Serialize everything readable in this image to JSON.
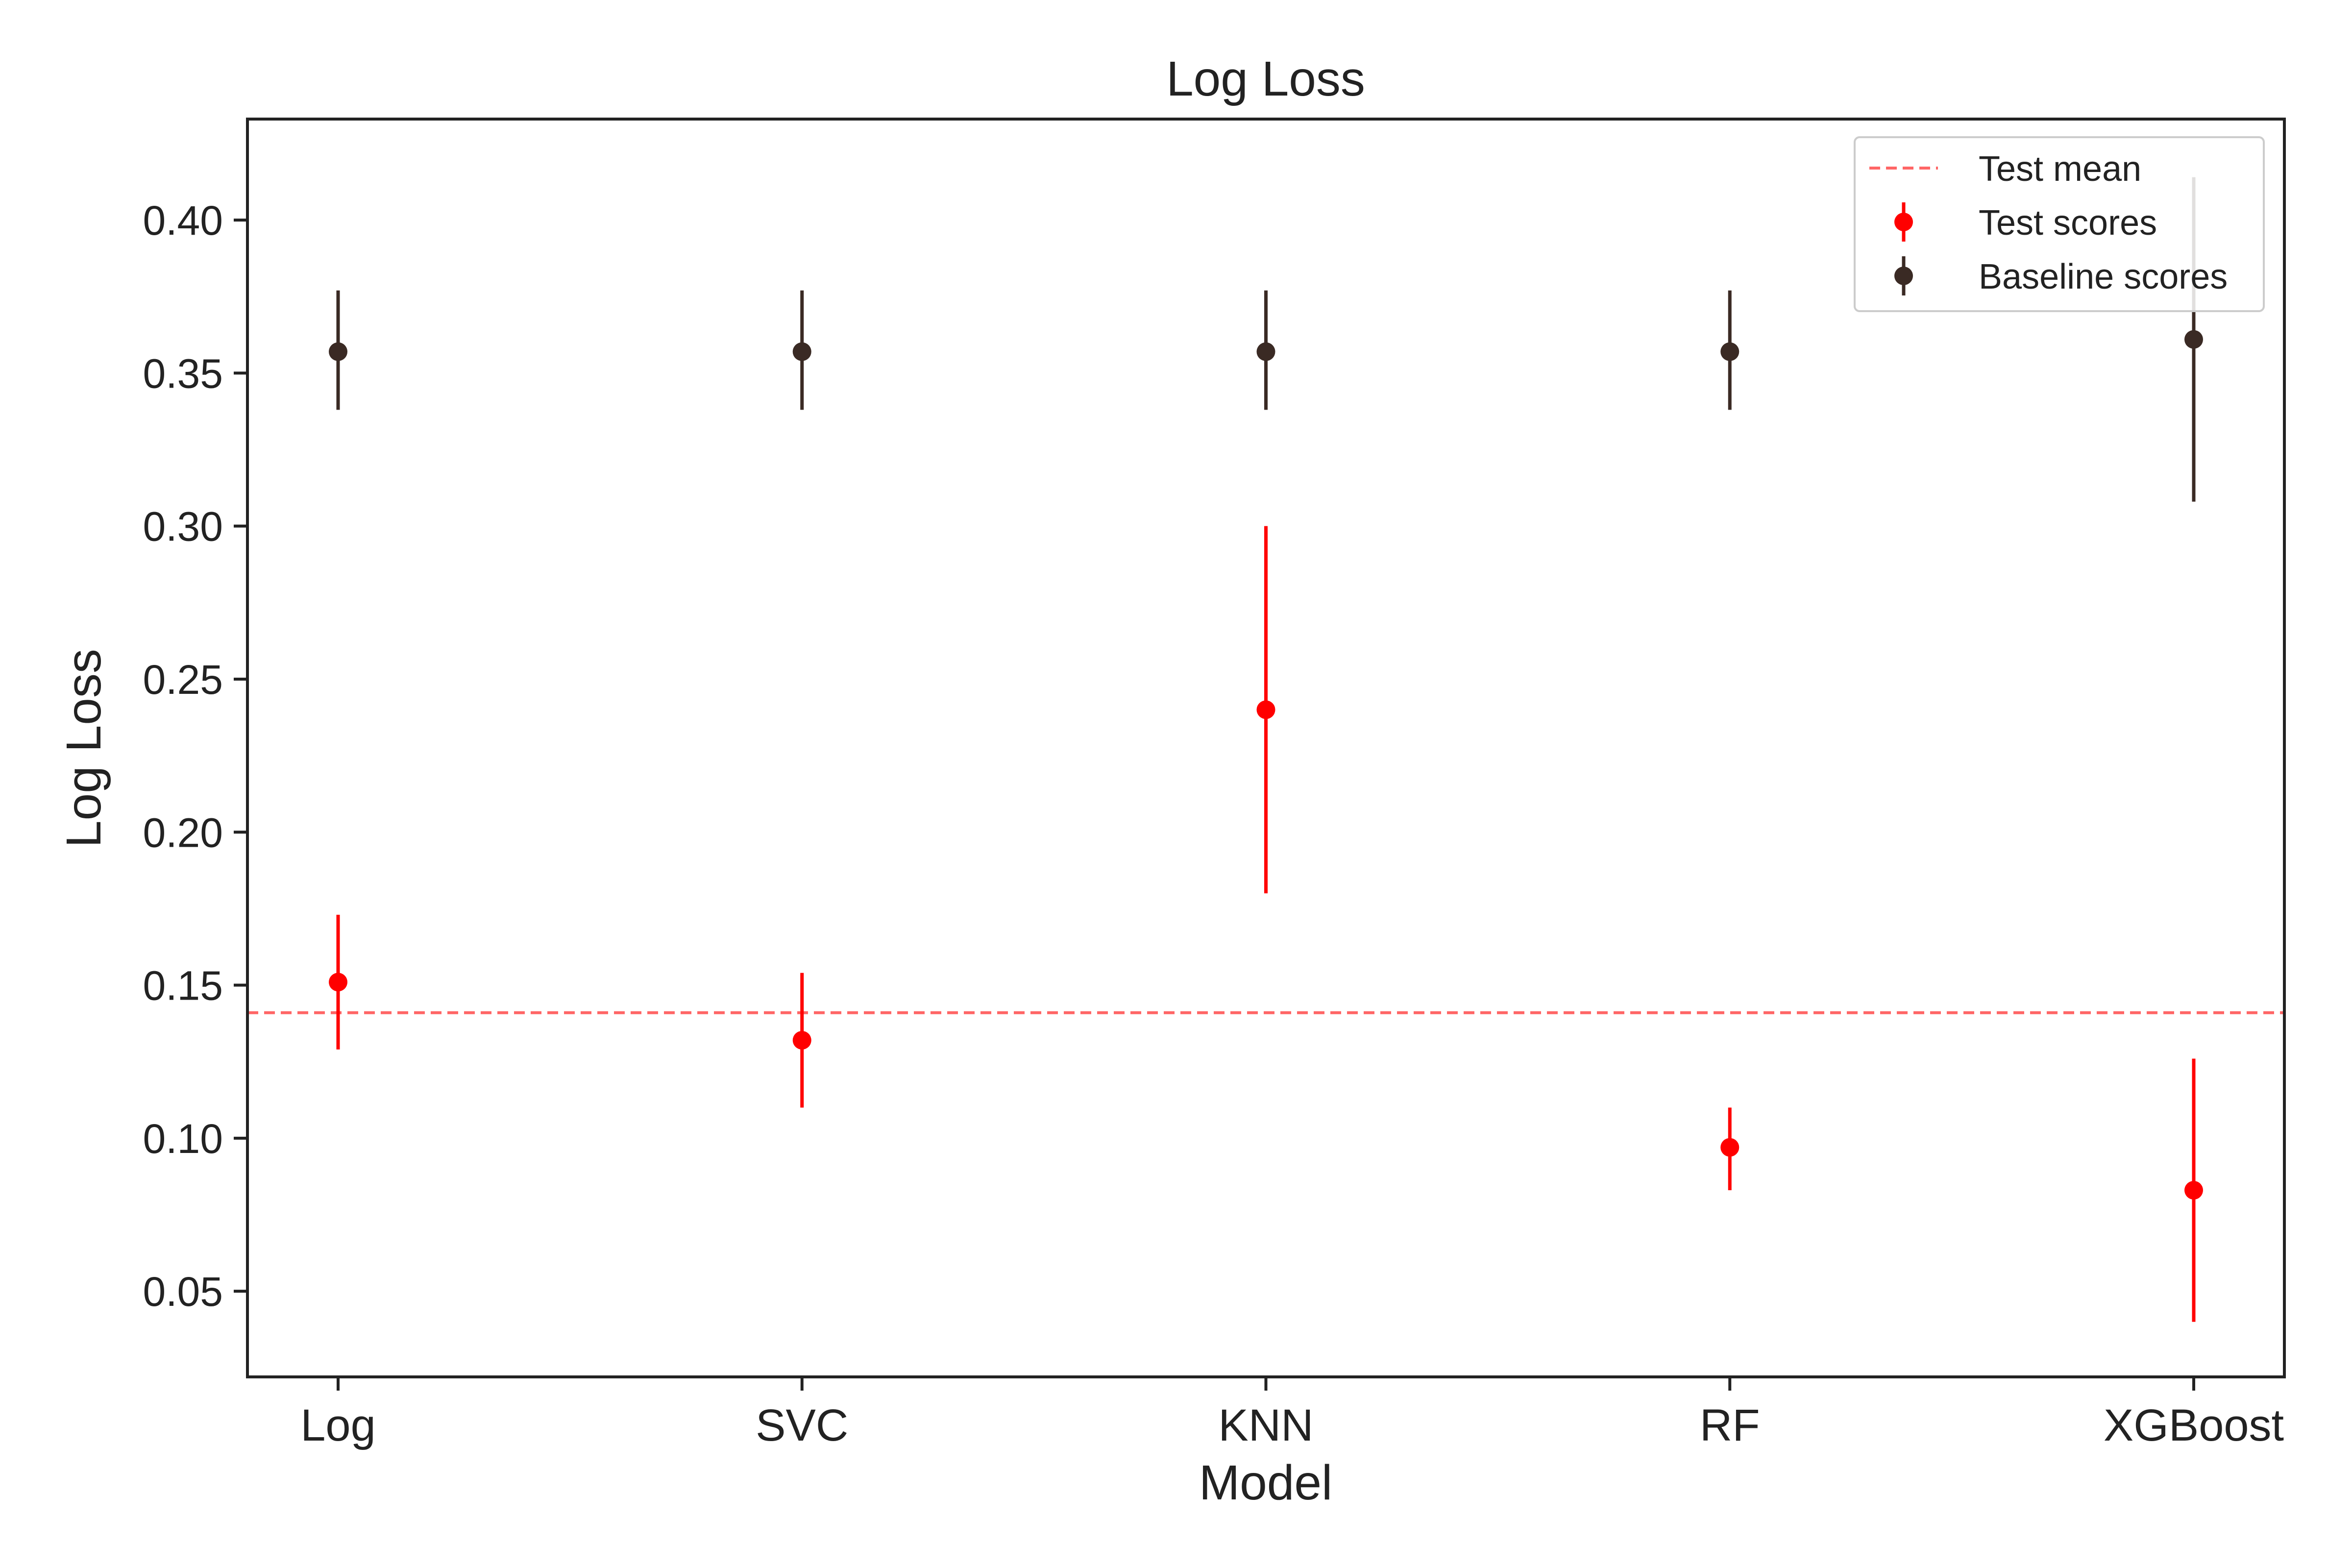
{
  "chart_data": {
    "type": "scatter",
    "title": "Log Loss",
    "xlabel": "Model",
    "ylabel": "Log Loss",
    "categories": [
      "Log",
      "SVC",
      "KNN",
      "RF",
      "XGBoost"
    ],
    "ylim": [
      0.022,
      0.433
    ],
    "yticks": [
      0.05,
      0.1,
      0.15,
      0.2,
      0.25,
      0.3,
      0.35,
      0.4
    ],
    "ytick_labels": [
      "0.05",
      "0.10",
      "0.15",
      "0.20",
      "0.25",
      "0.30",
      "0.35",
      "0.40"
    ],
    "grid": false,
    "legend": "top-right",
    "series": [
      {
        "name": "Test scores",
        "color": "#ff0000",
        "values": [
          0.151,
          0.132,
          0.24,
          0.097,
          0.083
        ],
        "lower": [
          0.129,
          0.11,
          0.18,
          0.083,
          0.04
        ],
        "upper": [
          0.173,
          0.154,
          0.3,
          0.11,
          0.126
        ]
      },
      {
        "name": "Baseline scores",
        "color": "#3a2a24",
        "values": [
          0.357,
          0.357,
          0.357,
          0.357,
          0.361
        ],
        "lower": [
          0.338,
          0.338,
          0.338,
          0.338,
          0.308
        ],
        "upper": [
          0.377,
          0.377,
          0.377,
          0.377,
          0.414
        ]
      }
    ],
    "reference_lines": [
      {
        "name": "Test mean",
        "value": 0.141,
        "color": "#ff6666",
        "style": "dashed"
      }
    ]
  }
}
